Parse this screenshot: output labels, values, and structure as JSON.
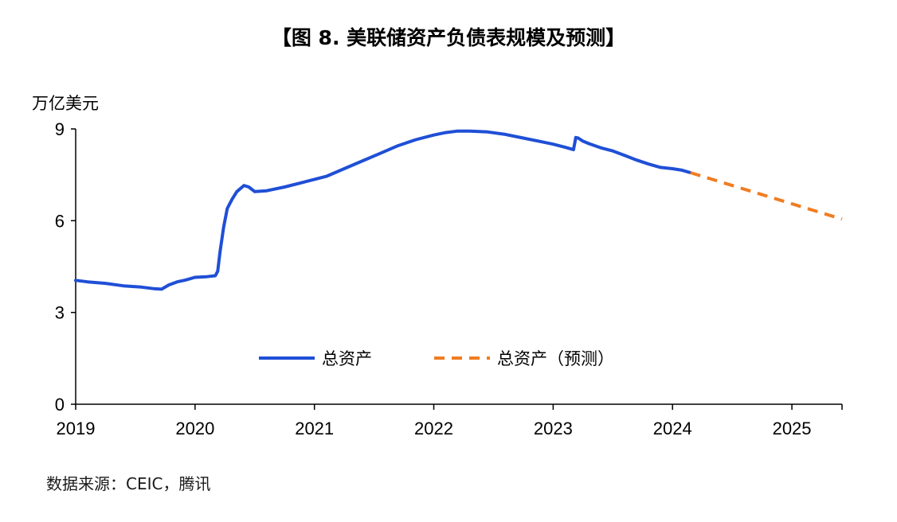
{
  "chart_data": {
    "type": "line",
    "title": "【图 8. 美联储资产负债表规模及预测】",
    "ylabel": "万亿美元",
    "xlabel": "",
    "ylim": [
      0,
      9
    ],
    "xlim": [
      2019.0,
      2025.42
    ],
    "yticks": [
      "0",
      "3",
      "6",
      "9"
    ],
    "xticks": [
      "2019",
      "2020",
      "2021",
      "2022",
      "2023",
      "2024",
      "2025"
    ],
    "grid": false,
    "legend_position": "center",
    "series": [
      {
        "name": "总资产",
        "color": "#1f4fd6",
        "style": "solid",
        "x": [
          2019.0,
          2019.1,
          2019.25,
          2019.4,
          2019.55,
          2019.65,
          2019.72,
          2019.78,
          2019.85,
          2019.92,
          2020.0,
          2020.1,
          2020.17,
          2020.19,
          2020.21,
          2020.24,
          2020.27,
          2020.31,
          2020.35,
          2020.41,
          2020.45,
          2020.5,
          2020.6,
          2020.75,
          2020.9,
          2021.0,
          2021.1,
          2021.25,
          2021.4,
          2021.55,
          2021.7,
          2021.85,
          2022.0,
          2022.1,
          2022.2,
          2022.3,
          2022.45,
          2022.6,
          2022.75,
          2022.9,
          2023.0,
          2023.1,
          2023.17,
          2023.19,
          2023.21,
          2023.25,
          2023.3,
          2023.4,
          2023.5,
          2023.6,
          2023.7,
          2023.8,
          2023.9,
          2024.0,
          2024.08,
          2024.15
        ],
        "y": [
          4.05,
          4.0,
          3.95,
          3.87,
          3.83,
          3.78,
          3.76,
          3.9,
          4.0,
          4.06,
          4.15,
          4.17,
          4.2,
          4.35,
          5.0,
          5.8,
          6.4,
          6.7,
          6.95,
          7.15,
          7.1,
          6.95,
          6.98,
          7.1,
          7.25,
          7.35,
          7.45,
          7.7,
          7.95,
          8.2,
          8.45,
          8.65,
          8.8,
          8.88,
          8.93,
          8.93,
          8.9,
          8.82,
          8.7,
          8.58,
          8.5,
          8.4,
          8.32,
          8.72,
          8.7,
          8.6,
          8.52,
          8.38,
          8.28,
          8.13,
          7.98,
          7.85,
          7.74,
          7.7,
          7.65,
          7.57
        ]
      },
      {
        "name": "总资产（预测）",
        "color": "#f07d22",
        "style": "dashed",
        "x": [
          2024.15,
          2025.42
        ],
        "y": [
          7.57,
          6.05
        ]
      }
    ]
  },
  "source_note": "数据来源：CEIC，腾讯"
}
